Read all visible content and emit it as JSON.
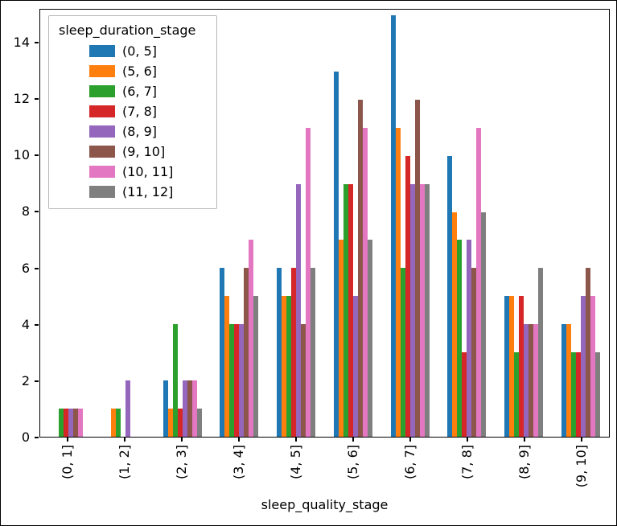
{
  "chart_data": {
    "type": "bar",
    "title": "",
    "xlabel": "sleep_quality_stage",
    "ylabel": "",
    "legend_title": "sleep_duration_stage",
    "legend_position": "upper left",
    "grid": false,
    "categories": [
      "(0, 1]",
      "(1, 2]",
      "(2, 3]",
      "(3, 4]",
      "(4, 5]",
      "(5, 6]",
      "(6, 7]",
      "(7, 8]",
      "(8, 9]",
      "(9, 10]"
    ],
    "yticks": [
      0,
      2,
      4,
      6,
      8,
      10,
      12,
      14
    ],
    "ylim": [
      0,
      15.2
    ],
    "series": [
      {
        "name": "(0, 5]",
        "color": "#1f77b4",
        "values": [
          0,
          0,
          2,
          6,
          6,
          13,
          15,
          10,
          5,
          4
        ]
      },
      {
        "name": "(5, 6]",
        "color": "#ff7f0e",
        "values": [
          0,
          1,
          1,
          5,
          5,
          7,
          11,
          8,
          5,
          4
        ]
      },
      {
        "name": "(6, 7]",
        "color": "#2ca02c",
        "values": [
          1,
          1,
          4,
          4,
          5,
          9,
          6,
          7,
          3,
          3
        ]
      },
      {
        "name": "(7, 8]",
        "color": "#d62728",
        "values": [
          1,
          0,
          1,
          4,
          6,
          9,
          10,
          3,
          5,
          3
        ]
      },
      {
        "name": "(8, 9]",
        "color": "#9467bd",
        "values": [
          1,
          2,
          2,
          4,
          9,
          5,
          9,
          7,
          4,
          5
        ]
      },
      {
        "name": "(9, 10]",
        "color": "#8c564b",
        "values": [
          1,
          0,
          2,
          6,
          4,
          12,
          12,
          6,
          4,
          6
        ]
      },
      {
        "name": "(10, 11]",
        "color": "#e377c2",
        "values": [
          1,
          0,
          2,
          7,
          11,
          11,
          9,
          11,
          4,
          5
        ]
      },
      {
        "name": "(11, 12]",
        "color": "#7f7f7f",
        "values": [
          0,
          0,
          1,
          5,
          6,
          7,
          9,
          8,
          6,
          3
        ]
      }
    ]
  },
  "colors": {
    "background": "#ffffff",
    "axis": "#000000",
    "legend_border": "#b7b7b7"
  }
}
